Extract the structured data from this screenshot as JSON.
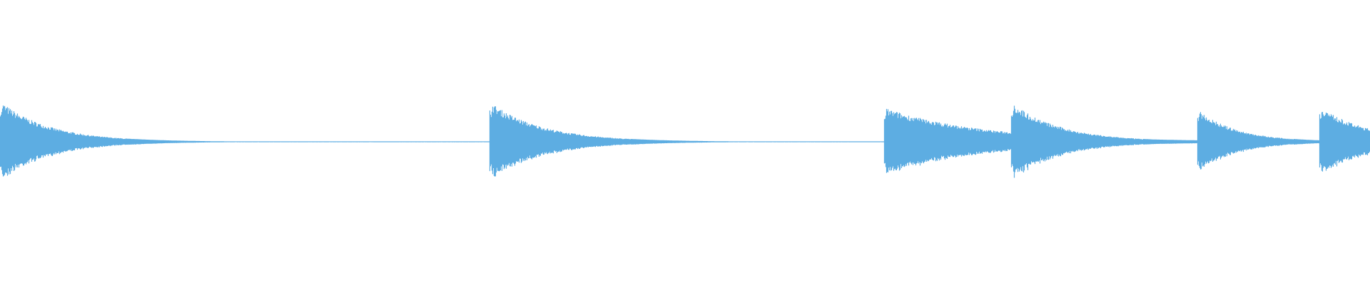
{
  "waveform": {
    "type": "audio-waveform",
    "color": "#5dade2",
    "background": "#ffffff"
  }
}
